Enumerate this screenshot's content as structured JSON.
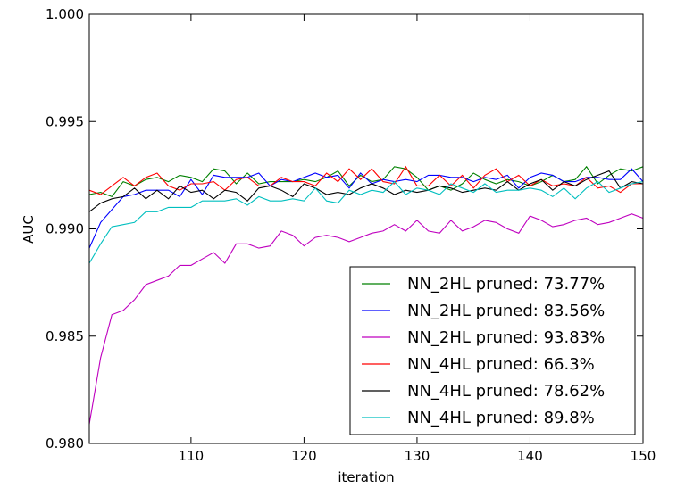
{
  "chart_data": {
    "type": "line",
    "title": "",
    "xlabel": "iteration",
    "ylabel": "AUC",
    "xlim": [
      101,
      150
    ],
    "ylim": [
      0.98,
      1.0
    ],
    "xticks": [
      110,
      120,
      130,
      140,
      150
    ],
    "xtick_labels": [
      "110",
      "120",
      "130",
      "140",
      "150"
    ],
    "yticks": [
      0.98,
      0.985,
      0.99,
      0.995,
      1.0
    ],
    "ytick_labels": [
      "0.980",
      "0.985",
      "0.990",
      "0.995",
      "1.000"
    ],
    "grid": false,
    "legend_position": "lower-right",
    "x": [
      101,
      102,
      103,
      104,
      105,
      106,
      107,
      108,
      109,
      110,
      111,
      112,
      113,
      114,
      115,
      116,
      117,
      118,
      119,
      120,
      121,
      122,
      123,
      124,
      125,
      126,
      127,
      128,
      129,
      130,
      131,
      132,
      133,
      134,
      135,
      136,
      137,
      138,
      139,
      140,
      141,
      142,
      143,
      144,
      145,
      146,
      147,
      148,
      149,
      150
    ],
    "series": [
      {
        "name": "NN_2HL pruned: 73.77%",
        "color": "#008000",
        "values": [
          0.9916,
          0.9917,
          0.9915,
          0.9922,
          0.992,
          0.9923,
          0.9924,
          0.9922,
          0.9925,
          0.9924,
          0.9922,
          0.9928,
          0.9927,
          0.9921,
          0.9926,
          0.9921,
          0.9922,
          0.9922,
          0.9922,
          0.9923,
          0.9922,
          0.9924,
          0.9927,
          0.992,
          0.9925,
          0.9922,
          0.9923,
          0.9929,
          0.9928,
          0.9924,
          0.9918,
          0.992,
          0.9918,
          0.9921,
          0.9926,
          0.9923,
          0.9921,
          0.9923,
          0.9922,
          0.992,
          0.9922,
          0.9925,
          0.9922,
          0.9923,
          0.9929,
          0.9921,
          0.9925,
          0.9928,
          0.9927,
          0.9929
        ]
      },
      {
        "name": "NN_2HL pruned: 83.56%",
        "color": "#0000ff",
        "values": [
          0.9891,
          0.9903,
          0.9909,
          0.9915,
          0.9916,
          0.9918,
          0.9918,
          0.9918,
          0.9915,
          0.9923,
          0.9916,
          0.9925,
          0.9924,
          0.9924,
          0.9924,
          0.9926,
          0.992,
          0.9923,
          0.9922,
          0.9924,
          0.9926,
          0.9924,
          0.9925,
          0.9919,
          0.9926,
          0.9921,
          0.9923,
          0.9922,
          0.9923,
          0.9922,
          0.9925,
          0.9925,
          0.9924,
          0.9924,
          0.9922,
          0.9924,
          0.9923,
          0.9925,
          0.9919,
          0.9924,
          0.9926,
          0.9925,
          0.9922,
          0.9922,
          0.9924,
          0.9924,
          0.9923,
          0.9923,
          0.9928,
          0.9922
        ]
      },
      {
        "name": "NN_2HL pruned: 93.83%",
        "color": "#bf00bf",
        "values": [
          0.9809,
          0.984,
          0.986,
          0.9862,
          0.9867,
          0.9874,
          0.9876,
          0.9878,
          0.9883,
          0.9883,
          0.9886,
          0.9889,
          0.9884,
          0.9893,
          0.9893,
          0.9891,
          0.9892,
          0.9899,
          0.9897,
          0.9892,
          0.9896,
          0.9897,
          0.9896,
          0.9894,
          0.9896,
          0.9898,
          0.9899,
          0.9902,
          0.9899,
          0.9904,
          0.9899,
          0.9898,
          0.9904,
          0.9899,
          0.9901,
          0.9904,
          0.9903,
          0.99,
          0.9898,
          0.9906,
          0.9904,
          0.9901,
          0.9902,
          0.9904,
          0.9905,
          0.9902,
          0.9903,
          0.9905,
          0.9907,
          0.9905
        ]
      },
      {
        "name": "NN_4HL pruned: 66.3%",
        "color": "#ff0000",
        "values": [
          0.9918,
          0.9916,
          0.992,
          0.9924,
          0.992,
          0.9924,
          0.9926,
          0.992,
          0.9918,
          0.9921,
          0.9921,
          0.9922,
          0.9918,
          0.9923,
          0.9924,
          0.992,
          0.992,
          0.9924,
          0.9922,
          0.9922,
          0.992,
          0.9926,
          0.9922,
          0.9928,
          0.9923,
          0.9928,
          0.9922,
          0.9921,
          0.9929,
          0.992,
          0.992,
          0.9925,
          0.992,
          0.9925,
          0.9919,
          0.9925,
          0.9928,
          0.9922,
          0.9925,
          0.992,
          0.9923,
          0.992,
          0.9921,
          0.992,
          0.9924,
          0.9919,
          0.992,
          0.9917,
          0.9921,
          0.9921
        ]
      },
      {
        "name": "NN_4HL pruned: 78.62%",
        "color": "#000000",
        "values": [
          0.9908,
          0.9912,
          0.9914,
          0.9915,
          0.9919,
          0.9914,
          0.9918,
          0.9914,
          0.992,
          0.9917,
          0.9918,
          0.9914,
          0.9918,
          0.9917,
          0.9913,
          0.9919,
          0.992,
          0.9918,
          0.9915,
          0.9921,
          0.9919,
          0.9916,
          0.9917,
          0.9916,
          0.9919,
          0.9921,
          0.9919,
          0.9916,
          0.9918,
          0.9917,
          0.9918,
          0.992,
          0.9919,
          0.9917,
          0.9918,
          0.9919,
          0.9918,
          0.9922,
          0.9918,
          0.9921,
          0.9923,
          0.9918,
          0.9922,
          0.992,
          0.9923,
          0.9925,
          0.9927,
          0.9919,
          0.9922,
          0.9921
        ]
      },
      {
        "name": "NN_4HL pruned: 89.8%",
        "color": "#00bfbf",
        "values": [
          0.9884,
          0.9893,
          0.9901,
          0.9902,
          0.9903,
          0.9908,
          0.9908,
          0.991,
          0.991,
          0.991,
          0.9913,
          0.9913,
          0.9913,
          0.9914,
          0.9911,
          0.9915,
          0.9913,
          0.9913,
          0.9914,
          0.9913,
          0.9919,
          0.9913,
          0.9912,
          0.9918,
          0.9916,
          0.9918,
          0.9917,
          0.9922,
          0.9916,
          0.9919,
          0.9918,
          0.9916,
          0.9921,
          0.9919,
          0.9917,
          0.9921,
          0.9917,
          0.9918,
          0.9918,
          0.9919,
          0.9918,
          0.9915,
          0.9919,
          0.9914,
          0.9919,
          0.9922,
          0.9917,
          0.9919,
          0.9921,
          0.9922
        ]
      }
    ]
  }
}
